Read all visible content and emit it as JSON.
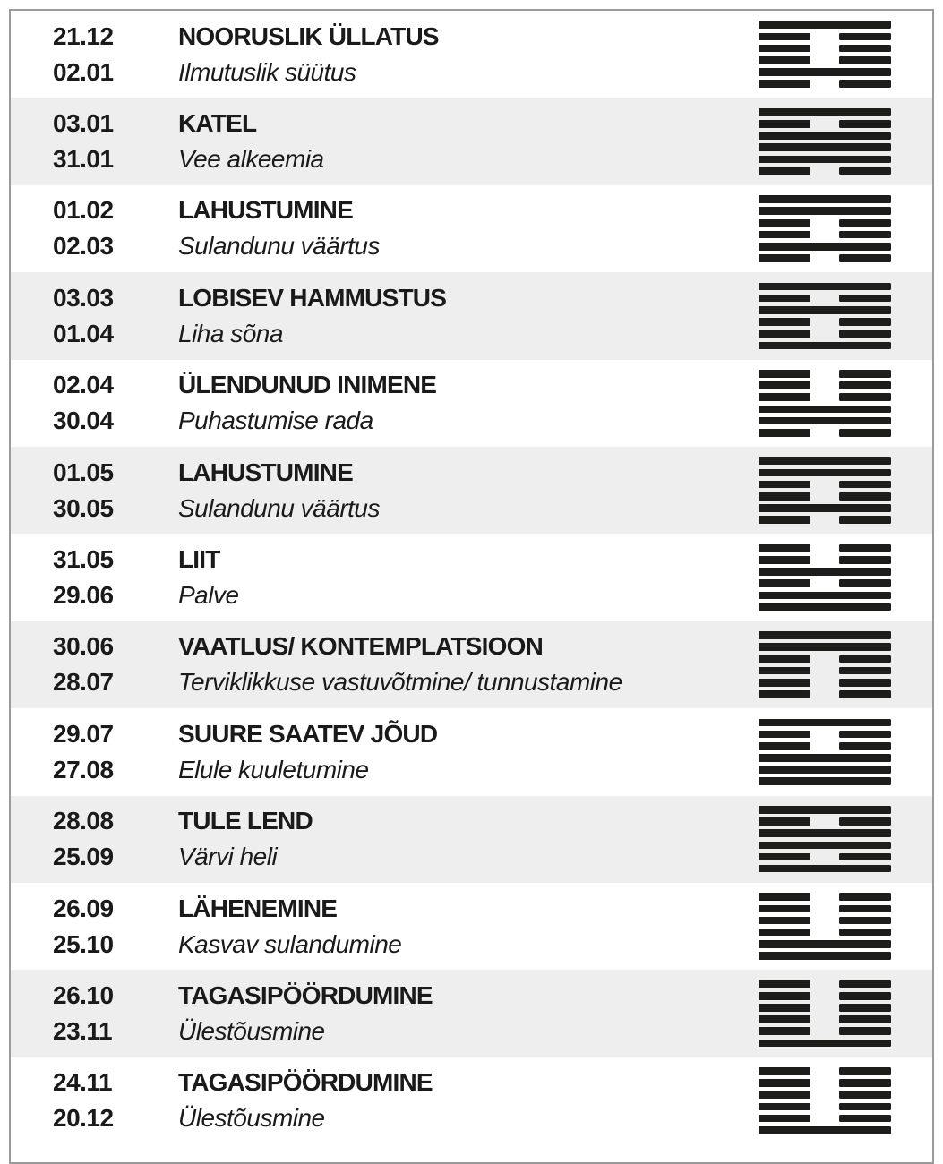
{
  "rows": [
    {
      "date_start": "21.12",
      "date_end": "02.01",
      "title": "NOORUSLIK ÜLLATUS",
      "subtitle": "Ilmutuslik süütus",
      "hexagram_icon": "hexagram-4-youthful-folly",
      "lines": [
        "solid",
        "broken",
        "broken",
        "broken",
        "solid",
        "broken"
      ]
    },
    {
      "date_start": "03.01",
      "date_end": "31.01",
      "title": "KATEL",
      "subtitle": "Vee alkeemia",
      "hexagram_icon": "hexagram-50-cauldron",
      "lines": [
        "solid",
        "broken",
        "solid",
        "solid",
        "solid",
        "broken"
      ]
    },
    {
      "date_start": "01.02",
      "date_end": "02.03",
      "title": "LAHUSTUMINE",
      "subtitle": "Sulandunu väärtus",
      "hexagram_icon": "hexagram-59-dispersion",
      "lines": [
        "solid",
        "solid",
        "broken",
        "broken",
        "solid",
        "broken"
      ]
    },
    {
      "date_start": "03.03",
      "date_end": "01.04",
      "title": "LOBISEV HAMMUSTUS",
      "subtitle": "Liha sõna",
      "hexagram_icon": "hexagram-21-biting-through",
      "lines": [
        "solid",
        "broken",
        "solid",
        "broken",
        "broken",
        "solid"
      ]
    },
    {
      "date_start": "02.04",
      "date_end": "30.04",
      "title": "ÜLENDUNUD INIMENE",
      "subtitle": "Puhastumise rada",
      "hexagram_icon": "hexagram-46-pushing-upward",
      "lines": [
        "broken",
        "broken",
        "broken",
        "solid",
        "solid",
        "broken"
      ]
    },
    {
      "date_start": "01.05",
      "date_end": "30.05",
      "title": "LAHUSTUMINE",
      "subtitle": "Sulandunu väärtus",
      "hexagram_icon": "hexagram-59-dispersion",
      "lines": [
        "solid",
        "solid",
        "broken",
        "broken",
        "solid",
        "broken"
      ]
    },
    {
      "date_start": "31.05",
      "date_end": "29.06",
      "title": "LIIT",
      "subtitle": "Palve",
      "hexagram_icon": "hexagram-54-marrying-maiden",
      "lines": [
        "broken",
        "broken",
        "solid",
        "broken",
        "solid",
        "solid"
      ]
    },
    {
      "date_start": "30.06",
      "date_end": "28.07",
      "title": "VAATLUS/ KONTEMPLATSIOON",
      "subtitle": "Terviklikkuse vastuvõtmine/ tunnustamine",
      "hexagram_icon": "hexagram-20-contemplation",
      "lines": [
        "solid",
        "solid",
        "broken",
        "broken",
        "broken",
        "broken"
      ]
    },
    {
      "date_start": "29.07",
      "date_end": "27.08",
      "title": "SUURE SAATEV JÕUD",
      "subtitle": "Elule kuuletumine",
      "hexagram_icon": "hexagram-26-great-taming",
      "lines": [
        "solid",
        "broken",
        "broken",
        "solid",
        "solid",
        "solid"
      ]
    },
    {
      "date_start": "28.08",
      "date_end": "25.09",
      "title": "TULE LEND",
      "subtitle": "Värvi heli",
      "hexagram_icon": "hexagram-30-clinging-fire",
      "lines": [
        "solid",
        "broken",
        "solid",
        "solid",
        "broken",
        "solid"
      ]
    },
    {
      "date_start": "26.09",
      "date_end": "25.10",
      "title": "LÄHENEMINE",
      "subtitle": "Kasvav sulandumine",
      "hexagram_icon": "hexagram-19-approach",
      "lines": [
        "broken",
        "broken",
        "broken",
        "broken",
        "solid",
        "solid"
      ]
    },
    {
      "date_start": "26.10",
      "date_end": "23.11",
      "title": "TAGASIPÖÖRDUMINE",
      "subtitle": "Ülestõusmine",
      "hexagram_icon": "hexagram-24-return",
      "lines": [
        "broken",
        "broken",
        "broken",
        "broken",
        "broken",
        "solid"
      ]
    },
    {
      "date_start": "24.11",
      "date_end": "20.12",
      "title": "TAGASIPÖÖRDUMINE",
      "subtitle": "Ülestõusmine",
      "hexagram_icon": "hexagram-24-return",
      "lines": [
        "broken",
        "broken",
        "broken",
        "broken",
        "broken",
        "solid"
      ]
    }
  ],
  "colors": {
    "row_alt_bg": "#eeeeee",
    "hexagram_line": "#1d1d1b",
    "border": "#9b9b9b",
    "text": "#1a1a1a"
  }
}
